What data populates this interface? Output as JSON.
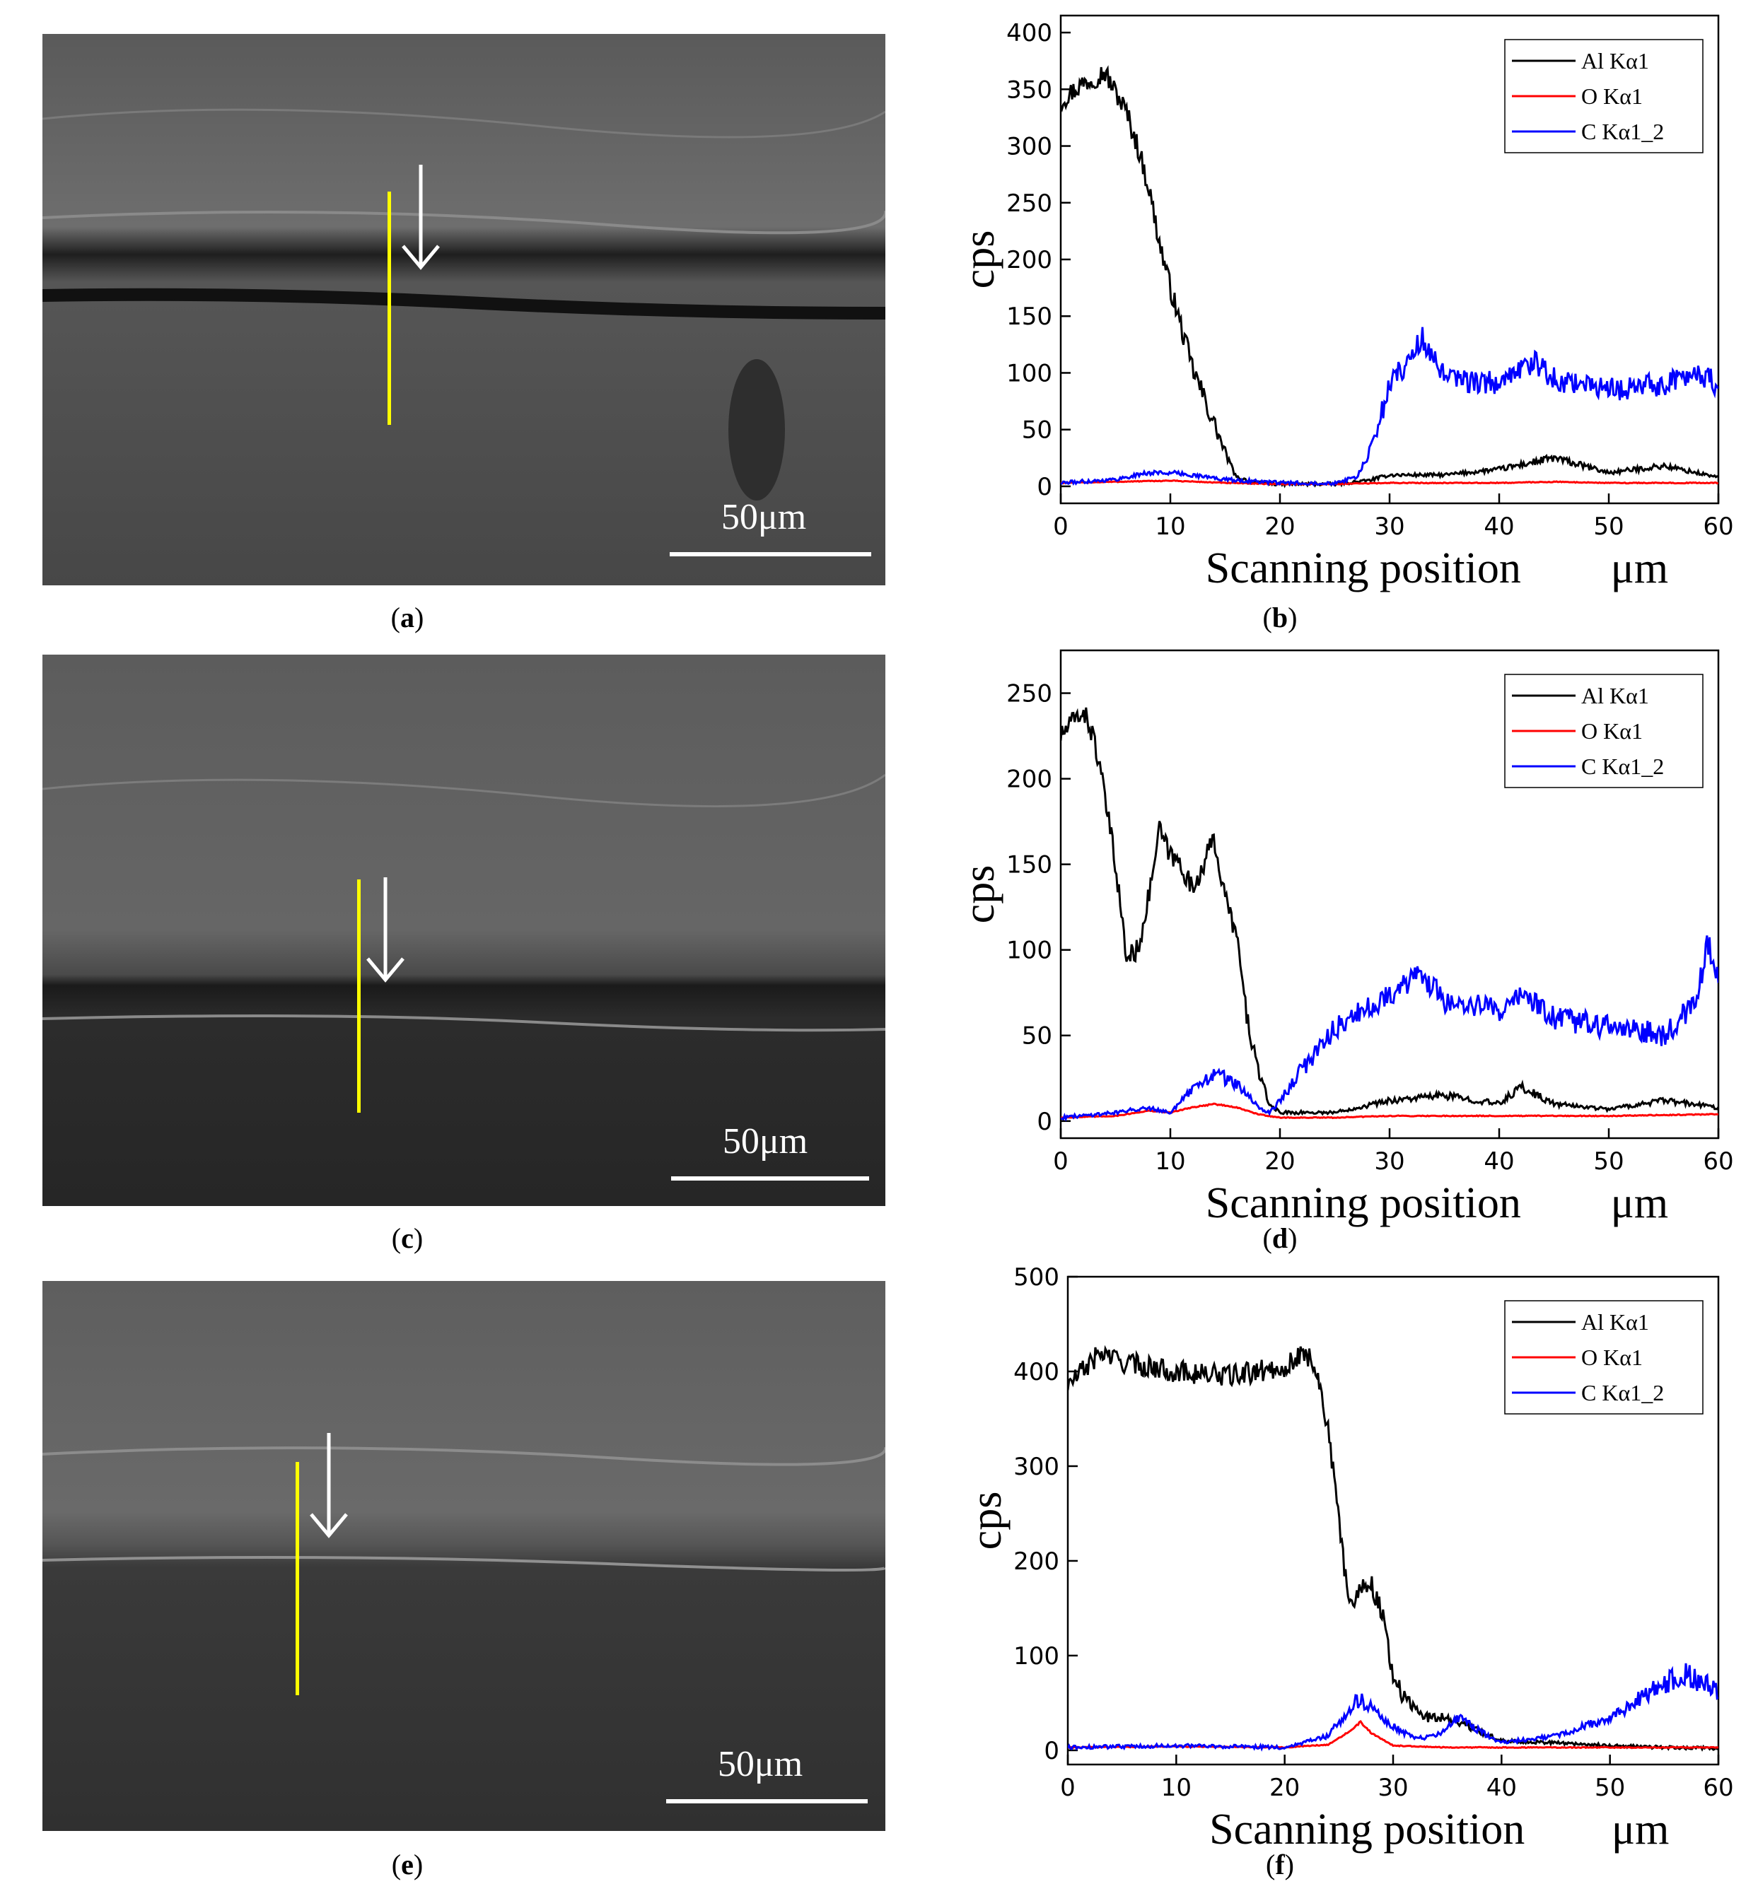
{
  "panels": [
    {
      "id": "a",
      "caption": "a",
      "scale_label": "50μm",
      "chart_data": null
    },
    {
      "id": "b",
      "caption": "b"
    },
    {
      "id": "c",
      "caption": "c",
      "scale_label": "50μm"
    },
    {
      "id": "d",
      "caption": "d"
    },
    {
      "id": "e",
      "caption": "e",
      "scale_label": "50μm"
    },
    {
      "id": "f",
      "caption": "f"
    }
  ],
  "colors": {
    "al": "#000000",
    "o": "#ff0000",
    "c": "#0000ff",
    "marker": "#ffff00",
    "arrow": "#ffffff"
  },
  "chart_data": [
    {
      "panel": "b",
      "type": "line",
      "xlabel": "Scanning position",
      "xunit": "μm",
      "ylabel": "cps",
      "xlim": [
        0,
        60
      ],
      "ylim": [
        -15,
        415
      ],
      "xticks": [
        0,
        10,
        20,
        30,
        40,
        50,
        60
      ],
      "yticks": [
        0,
        50,
        100,
        150,
        200,
        250,
        300,
        350,
        400
      ],
      "legend": "top-right",
      "series": [
        {
          "name": "Al Kα1",
          "key": "al",
          "x": [
            0,
            2,
            4,
            6,
            7,
            8,
            9,
            10,
            11,
            12,
            13,
            14,
            15,
            16,
            18,
            20,
            25,
            28,
            30,
            35,
            40,
            45,
            50,
            55,
            60
          ],
          "y": [
            340,
            355,
            365,
            330,
            300,
            265,
            215,
            175,
            140,
            105,
            80,
            55,
            30,
            8,
            3,
            2,
            2,
            5,
            10,
            10,
            15,
            25,
            12,
            18,
            8
          ]
        },
        {
          "name": "O  Kα1",
          "key": "o",
          "x": [
            0,
            5,
            10,
            15,
            20,
            25,
            30,
            35,
            40,
            45,
            50,
            55,
            60
          ],
          "y": [
            3,
            4,
            5,
            3,
            2,
            2,
            3,
            3,
            3,
            4,
            3,
            3,
            3
          ]
        },
        {
          "name": "C  Kα1_2",
          "key": "c",
          "x": [
            0,
            5,
            8,
            10,
            12,
            15,
            20,
            25,
            27,
            28,
            29,
            30,
            32,
            33,
            35,
            40,
            43,
            45,
            50,
            55,
            58,
            60
          ],
          "y": [
            3,
            6,
            12,
            12,
            10,
            6,
            3,
            3,
            8,
            25,
            55,
            90,
            115,
            130,
            95,
            90,
            110,
            95,
            85,
            90,
            100,
            90
          ]
        }
      ]
    },
    {
      "panel": "d",
      "type": "line",
      "xlabel": "Scanning position",
      "xunit": "μm",
      "ylabel": "cps",
      "xlim": [
        0,
        60
      ],
      "ylim": [
        -10,
        275
      ],
      "xticks": [
        0,
        10,
        20,
        30,
        40,
        50,
        60
      ],
      "yticks": [
        0,
        50,
        100,
        150,
        200,
        250
      ],
      "legend": "top-right",
      "series": [
        {
          "name": "Al Kα1",
          "key": "al",
          "x": [
            0,
            2,
            3,
            4,
            5,
            6,
            7,
            8,
            9,
            10,
            11,
            12,
            13,
            14,
            15,
            16,
            17,
            18,
            19,
            20,
            25,
            30,
            35,
            40,
            42,
            45,
            50,
            55,
            60
          ],
          "y": [
            225,
            240,
            225,
            190,
            150,
            95,
            100,
            130,
            170,
            155,
            150,
            135,
            150,
            165,
            130,
            110,
            60,
            30,
            10,
            5,
            5,
            12,
            15,
            10,
            20,
            10,
            7,
            12,
            8
          ]
        },
        {
          "name": "O  Kα1",
          "key": "o",
          "x": [
            0,
            5,
            8,
            10,
            12,
            14,
            16,
            18,
            20,
            25,
            30,
            40,
            50,
            60
          ],
          "y": [
            2,
            3,
            6,
            5,
            8,
            10,
            8,
            4,
            2,
            2,
            3,
            3,
            3,
            4
          ]
        },
        {
          "name": "C  Kα1_2",
          "key": "c",
          "x": [
            0,
            5,
            8,
            10,
            12,
            14,
            16,
            18,
            19,
            20,
            22,
            25,
            28,
            30,
            33,
            35,
            40,
            42,
            45,
            50,
            55,
            58,
            59,
            60
          ],
          "y": [
            2,
            5,
            8,
            5,
            18,
            28,
            22,
            8,
            5,
            12,
            30,
            55,
            65,
            75,
            85,
            70,
            65,
            75,
            60,
            55,
            50,
            70,
            105,
            85
          ]
        }
      ]
    },
    {
      "panel": "f",
      "type": "line",
      "xlabel": "Scanning position",
      "xunit": "μm",
      "ylabel": "cps",
      "xlim": [
        0,
        60
      ],
      "ylim": [
        -15,
        500
      ],
      "xticks": [
        0,
        10,
        20,
        30,
        40,
        50,
        60
      ],
      "yticks": [
        0,
        100,
        200,
        300,
        400,
        500
      ],
      "legend": "top-right",
      "series": [
        {
          "name": "Al Kα1",
          "key": "al",
          "x": [
            0,
            3,
            5,
            10,
            15,
            20,
            22,
            23,
            24,
            25,
            26,
            27,
            28,
            29,
            30,
            31,
            33,
            35,
            38,
            40,
            45,
            50,
            55,
            60
          ],
          "y": [
            385,
            420,
            410,
            400,
            395,
            405,
            420,
            400,
            340,
            240,
            150,
            175,
            175,
            145,
            80,
            55,
            35,
            35,
            20,
            10,
            8,
            5,
            3,
            2
          ]
        },
        {
          "name": "O  Kα1",
          "key": "o",
          "x": [
            0,
            10,
            20,
            24,
            26,
            27,
            28,
            30,
            35,
            40,
            50,
            60
          ],
          "y": [
            3,
            4,
            3,
            6,
            20,
            30,
            18,
            5,
            3,
            3,
            3,
            3
          ]
        },
        {
          "name": "C  Kα1_2",
          "key": "c",
          "x": [
            0,
            10,
            20,
            24,
            26,
            27,
            28,
            30,
            32,
            34,
            36,
            38,
            40,
            45,
            50,
            55,
            57,
            60
          ],
          "y": [
            3,
            5,
            3,
            15,
            45,
            55,
            45,
            25,
            12,
            15,
            35,
            20,
            8,
            15,
            35,
            70,
            80,
            65
          ]
        }
      ]
    }
  ]
}
